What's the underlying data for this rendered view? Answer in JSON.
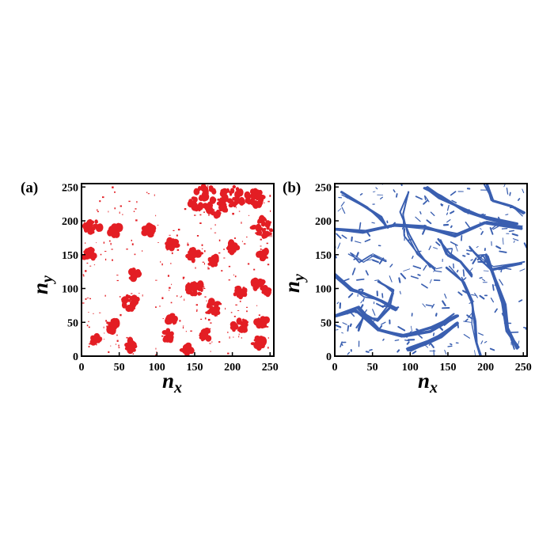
{
  "chart_data": [
    {
      "type": "heatmap",
      "panel_label": "(a)",
      "xlabel": "n",
      "xlabel_sub": "x",
      "ylabel": "n",
      "ylabel_sub": "y",
      "xlim": [
        0,
        255
      ],
      "ylim": [
        0,
        255
      ],
      "xticks": [
        "0",
        "50",
        "100",
        "150",
        "200",
        "250"
      ],
      "yticks": [
        "0",
        "50",
        "100",
        "150",
        "200",
        "250"
      ],
      "grid": false,
      "color": "#e31e24",
      "pattern": "dense clusters",
      "seed": 7
    },
    {
      "type": "heatmap",
      "panel_label": "(b)",
      "xlabel": "n",
      "xlabel_sub": "x",
      "ylabel": "n",
      "ylabel_sub": "y",
      "xlim": [
        0,
        255
      ],
      "ylim": [
        0,
        255
      ],
      "xticks": [
        "0",
        "50",
        "100",
        "150",
        "200",
        "250"
      ],
      "yticks": [
        "0",
        "50",
        "100",
        "150",
        "200",
        "250"
      ],
      "grid": false,
      "color": "#3a5fb0",
      "pattern": "filamentary network",
      "seed": 13
    }
  ]
}
